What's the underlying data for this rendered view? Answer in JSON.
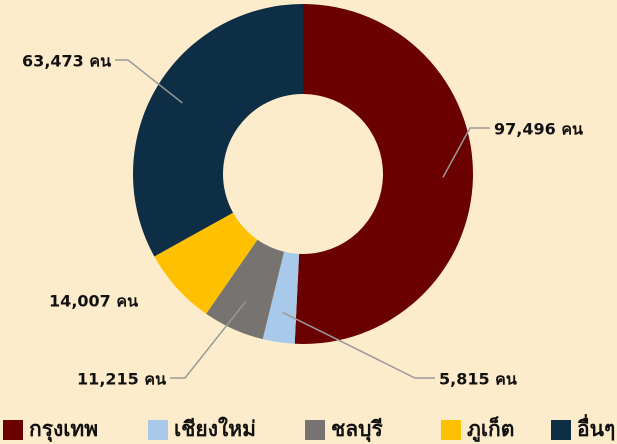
{
  "chart_data": {
    "type": "donut",
    "categories": [
      "กรุงเทพ",
      "เชียงใหม่",
      "ชลบุรี",
      "ภูเก็ต",
      "อื่นๆ"
    ],
    "values": [
      97496,
      5815,
      11215,
      14007,
      63473
    ],
    "value_labels": [
      "97,496 คน",
      "5,815 คน",
      "11,215 คน",
      "14,007 คน",
      "63,473 คน"
    ],
    "colors": [
      "#6b0000",
      "#a9c9ea",
      "#777371",
      "#ffc000",
      "#0e2e45"
    ],
    "legend": "bottom"
  }
}
